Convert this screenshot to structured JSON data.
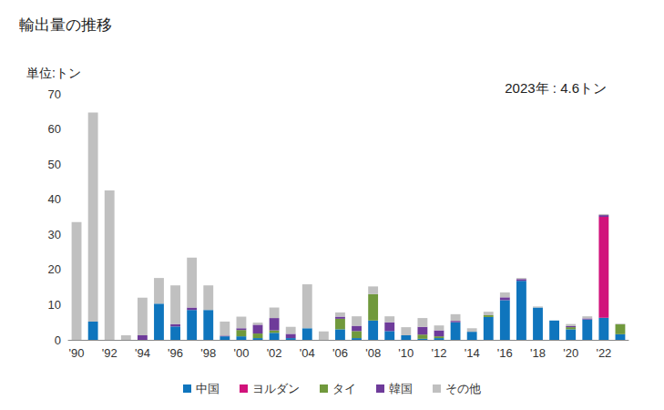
{
  "chart_data": {
    "type": "bar",
    "title": "輸出量の推移",
    "y_label": "単位:トン",
    "annotation": "2023年 : 4.6トン",
    "stacked": true,
    "grid": false,
    "legend": "bottom",
    "categories": [
      "'90",
      null,
      "'92",
      null,
      "'94",
      null,
      "'96",
      null,
      "'98",
      null,
      "'00",
      null,
      "'02",
      null,
      "'04",
      null,
      "'06",
      null,
      "'08",
      null,
      "'10",
      null,
      "'12",
      null,
      "'14",
      null,
      "'16",
      null,
      "'18",
      null,
      "'20",
      null,
      "'22",
      null
    ],
    "ylim": [
      0,
      70
    ],
    "yticks": [
      0,
      10,
      20,
      30,
      40,
      50,
      60,
      70
    ],
    "series": [
      {
        "name": "中国",
        "color": "#0f75bd",
        "values": [
          0,
          5.2,
          0,
          0,
          0,
          10.3,
          3.8,
          8.5,
          8.5,
          1,
          1,
          0.5,
          2,
          0.5,
          3.3,
          0,
          3,
          0.5,
          5.5,
          2.5,
          1.3,
          0.3,
          0.5,
          5,
          2.3,
          6.5,
          11.3,
          16.8,
          9.2,
          5.5,
          3,
          5.8,
          6.3,
          1.6
        ]
      },
      {
        "name": "ヨルダン",
        "color": "#d1127b",
        "values": [
          0,
          0,
          0,
          0,
          0,
          0,
          0,
          0,
          0,
          0,
          0,
          0,
          0,
          0,
          0,
          0,
          0,
          0,
          0,
          0,
          0,
          0,
          0,
          0,
          0,
          0,
          0,
          0,
          0,
          0,
          0,
          0,
          28.7,
          0
        ]
      },
      {
        "name": "タイ",
        "color": "#70993c",
        "values": [
          0,
          0,
          0,
          0,
          0,
          0,
          0,
          0,
          0,
          0,
          1.8,
          1.3,
          0.7,
          0,
          0,
          0,
          3,
          2,
          7.5,
          0,
          0,
          1.2,
          0.5,
          0,
          0,
          0.5,
          0,
          0,
          0,
          0,
          0.6,
          0,
          0,
          2.8
        ]
      },
      {
        "name": "韓国",
        "color": "#6e3b9a",
        "values": [
          0,
          0,
          0,
          0,
          1.3,
          0,
          0.7,
          0.7,
          0,
          0.2,
          0.5,
          2.5,
          3.5,
          1.2,
          0,
          0,
          0.6,
          1.5,
          0,
          2.5,
          0,
          2.2,
          1.7,
          0.4,
          0,
          0,
          0.8,
          0.5,
          0,
          0,
          0.3,
          0.3,
          0.5,
          0
        ]
      },
      {
        "name": "その他",
        "color": "#c0c0c0",
        "values": [
          33.5,
          59.5,
          42.5,
          1.3,
          10.7,
          7.3,
          11,
          14.2,
          7,
          4,
          3.3,
          0.6,
          3,
          2,
          12.5,
          2.4,
          1.2,
          2.7,
          2.2,
          1.7,
          2.3,
          2.5,
          1.4,
          1.9,
          1,
          1,
          1.4,
          0.3,
          0.3,
          0,
          0.6,
          0.6,
          0.3,
          0.2
        ]
      }
    ]
  }
}
